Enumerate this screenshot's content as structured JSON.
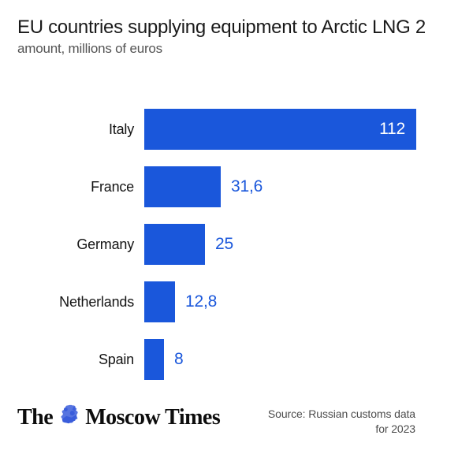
{
  "header": {
    "title": "EU countries supplying equipment to Arctic LNG 2",
    "subtitle": "amount, millions of euros"
  },
  "chart_data": {
    "type": "bar",
    "orientation": "horizontal",
    "title": "EU countries supplying equipment to Arctic LNG 2",
    "subtitle": "amount, millions of euros",
    "categories": [
      "Italy",
      "France",
      "Germany",
      "Netherlands",
      "Spain"
    ],
    "values": [
      112,
      31.6,
      25,
      12.8,
      8
    ],
    "value_labels": [
      "112",
      "31,6",
      "25",
      "12,8",
      "8"
    ],
    "value_label_position": [
      "inside",
      "outside",
      "outside",
      "outside",
      "outside"
    ],
    "xlim": [
      0,
      112
    ],
    "grid": false,
    "axes_shown": false,
    "bar_color": "#1a57db",
    "value_color_inside": "#ffffff",
    "value_color_outside": "#1a57db",
    "legend": "none"
  },
  "footer": {
    "logo_the": "The",
    "logo_rest": "Moscow Times",
    "crest_icon": "moscow-times-crest",
    "source_line1": "Source: Russian customs data",
    "source_line2": "for 2023"
  },
  "colors": {
    "background": "#ffffff",
    "title_text": "#1a1a1a",
    "subtitle_text": "#545454",
    "label_text": "#141414",
    "source_text": "#4d4d4d",
    "bar_blue": "#1a57db",
    "crest_blue": "#3a5ddb"
  }
}
